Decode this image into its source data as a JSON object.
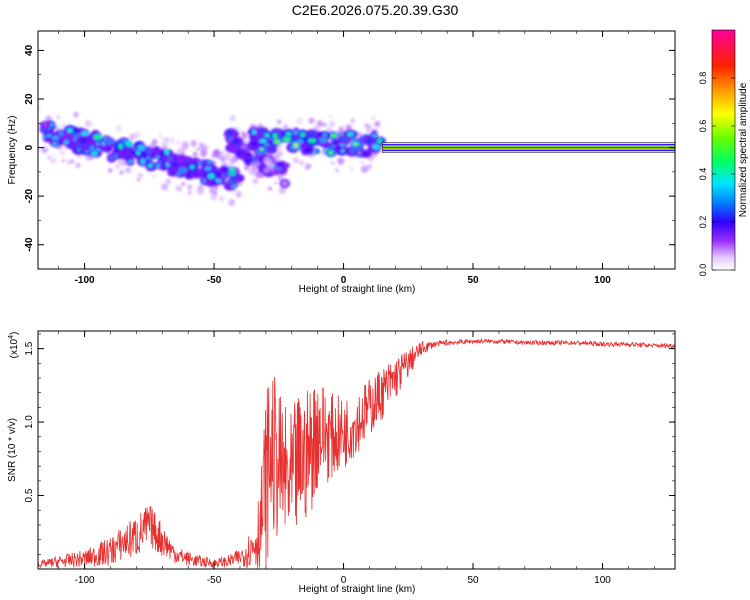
{
  "figure_title": "C2E6.2026.075.20.39.G30",
  "chart_data": [
    {
      "type": "heatmap",
      "title": "C2E6.2026.075.20.39.G30",
      "xlabel": "Height of straight line (km)",
      "ylabel": "Frequency (Hz)",
      "xlim": [
        -118,
        128
      ],
      "ylim": [
        -50,
        48
      ],
      "x_ticks": [
        -100,
        -50,
        0,
        50,
        100
      ],
      "x_tick_labels": [
        "-100",
        "-50",
        "0",
        "50",
        "100"
      ],
      "y_ticks": [
        -40,
        -20,
        0,
        20,
        40
      ],
      "y_tick_labels": [
        "-40",
        "-20",
        "0",
        "20",
        "40"
      ],
      "colorbar": {
        "label": "Normalized spectral amplitude",
        "range": [
          0,
          1
        ],
        "ticks": [
          0,
          0.2,
          0.4,
          0.6,
          0.8
        ],
        "tick_labels": [
          "0.0",
          "0.2",
          "0.4",
          "0.6",
          "0.8"
        ],
        "colormap": "rainbow"
      },
      "features": [
        {
          "kind": "band",
          "x_start": -118,
          "x_end": -40,
          "freq_start": 7,
          "freq_end": -13,
          "amplitude": 0.45
        },
        {
          "kind": "band",
          "x_start": -45,
          "x_end": -22,
          "freq_start": 4,
          "freq_end": -12,
          "amplitude": 0.3
        },
        {
          "kind": "band",
          "x_start": -35,
          "x_end": 15,
          "freq_start": 3,
          "freq_end": 1,
          "amplitude": 0.6
        },
        {
          "kind": "line",
          "x_start": 15,
          "x_end": 128,
          "freq": 0,
          "amplitude": 0.9
        }
      ],
      "grid": false,
      "legend": "colorbar-right"
    },
    {
      "type": "line",
      "xlabel": "Height of straight line (km)",
      "ylabel": "SNR (10 * v/v)",
      "y_scale_label": "(x10",
      "y_scale_exponent": "4",
      "xlim": [
        -118,
        128
      ],
      "ylim": [
        0,
        1.62
      ],
      "x_ticks": [
        -100,
        -50,
        0,
        50,
        100
      ],
      "x_tick_labels": [
        "-100",
        "-50",
        "0",
        "50",
        "100"
      ],
      "y_ticks": [
        0.5,
        1.0,
        1.5
      ],
      "y_tick_labels": [
        "0.5",
        "1.0",
        "1.5"
      ],
      "series": [
        {
          "color": "#e83030",
          "x": [
            -118,
            -110,
            -100,
            -90,
            -85,
            -80,
            -75,
            -70,
            -65,
            -60,
            -55,
            -50,
            -45,
            -40,
            -35,
            -32,
            -30,
            -28,
            -25,
            -22,
            -20,
            -18,
            -15,
            -12,
            -10,
            -5,
            0,
            5,
            10,
            15,
            20,
            25,
            30,
            35,
            40,
            50,
            60,
            70,
            80,
            90,
            100,
            110,
            120,
            128
          ],
          "y": [
            0.03,
            0.05,
            0.07,
            0.12,
            0.18,
            0.22,
            0.3,
            0.2,
            0.1,
            0.07,
            0.05,
            0.04,
            0.05,
            0.08,
            0.15,
            0.3,
            0.6,
            0.8,
            0.7,
            0.6,
            0.55,
            0.7,
            0.75,
            0.85,
            0.95,
            0.9,
            0.92,
            1.0,
            1.1,
            1.2,
            1.3,
            1.4,
            1.5,
            1.53,
            1.54,
            1.55,
            1.55,
            1.54,
            1.54,
            1.54,
            1.53,
            1.53,
            1.52,
            1.52
          ],
          "noise_amplitude": [
            0.02,
            0.04,
            0.06,
            0.1,
            0.12,
            0.15,
            0.15,
            0.12,
            0.06,
            0.05,
            0.04,
            0.03,
            0.04,
            0.06,
            0.15,
            0.35,
            0.6,
            0.6,
            0.5,
            0.5,
            0.5,
            0.5,
            0.45,
            0.45,
            0.4,
            0.3,
            0.25,
            0.22,
            0.2,
            0.18,
            0.15,
            0.1,
            0.05,
            0.02,
            0.02,
            0.015,
            0.015,
            0.015,
            0.015,
            0.015,
            0.015,
            0.015,
            0.015,
            0.015
          ]
        }
      ],
      "grid": false
    }
  ]
}
